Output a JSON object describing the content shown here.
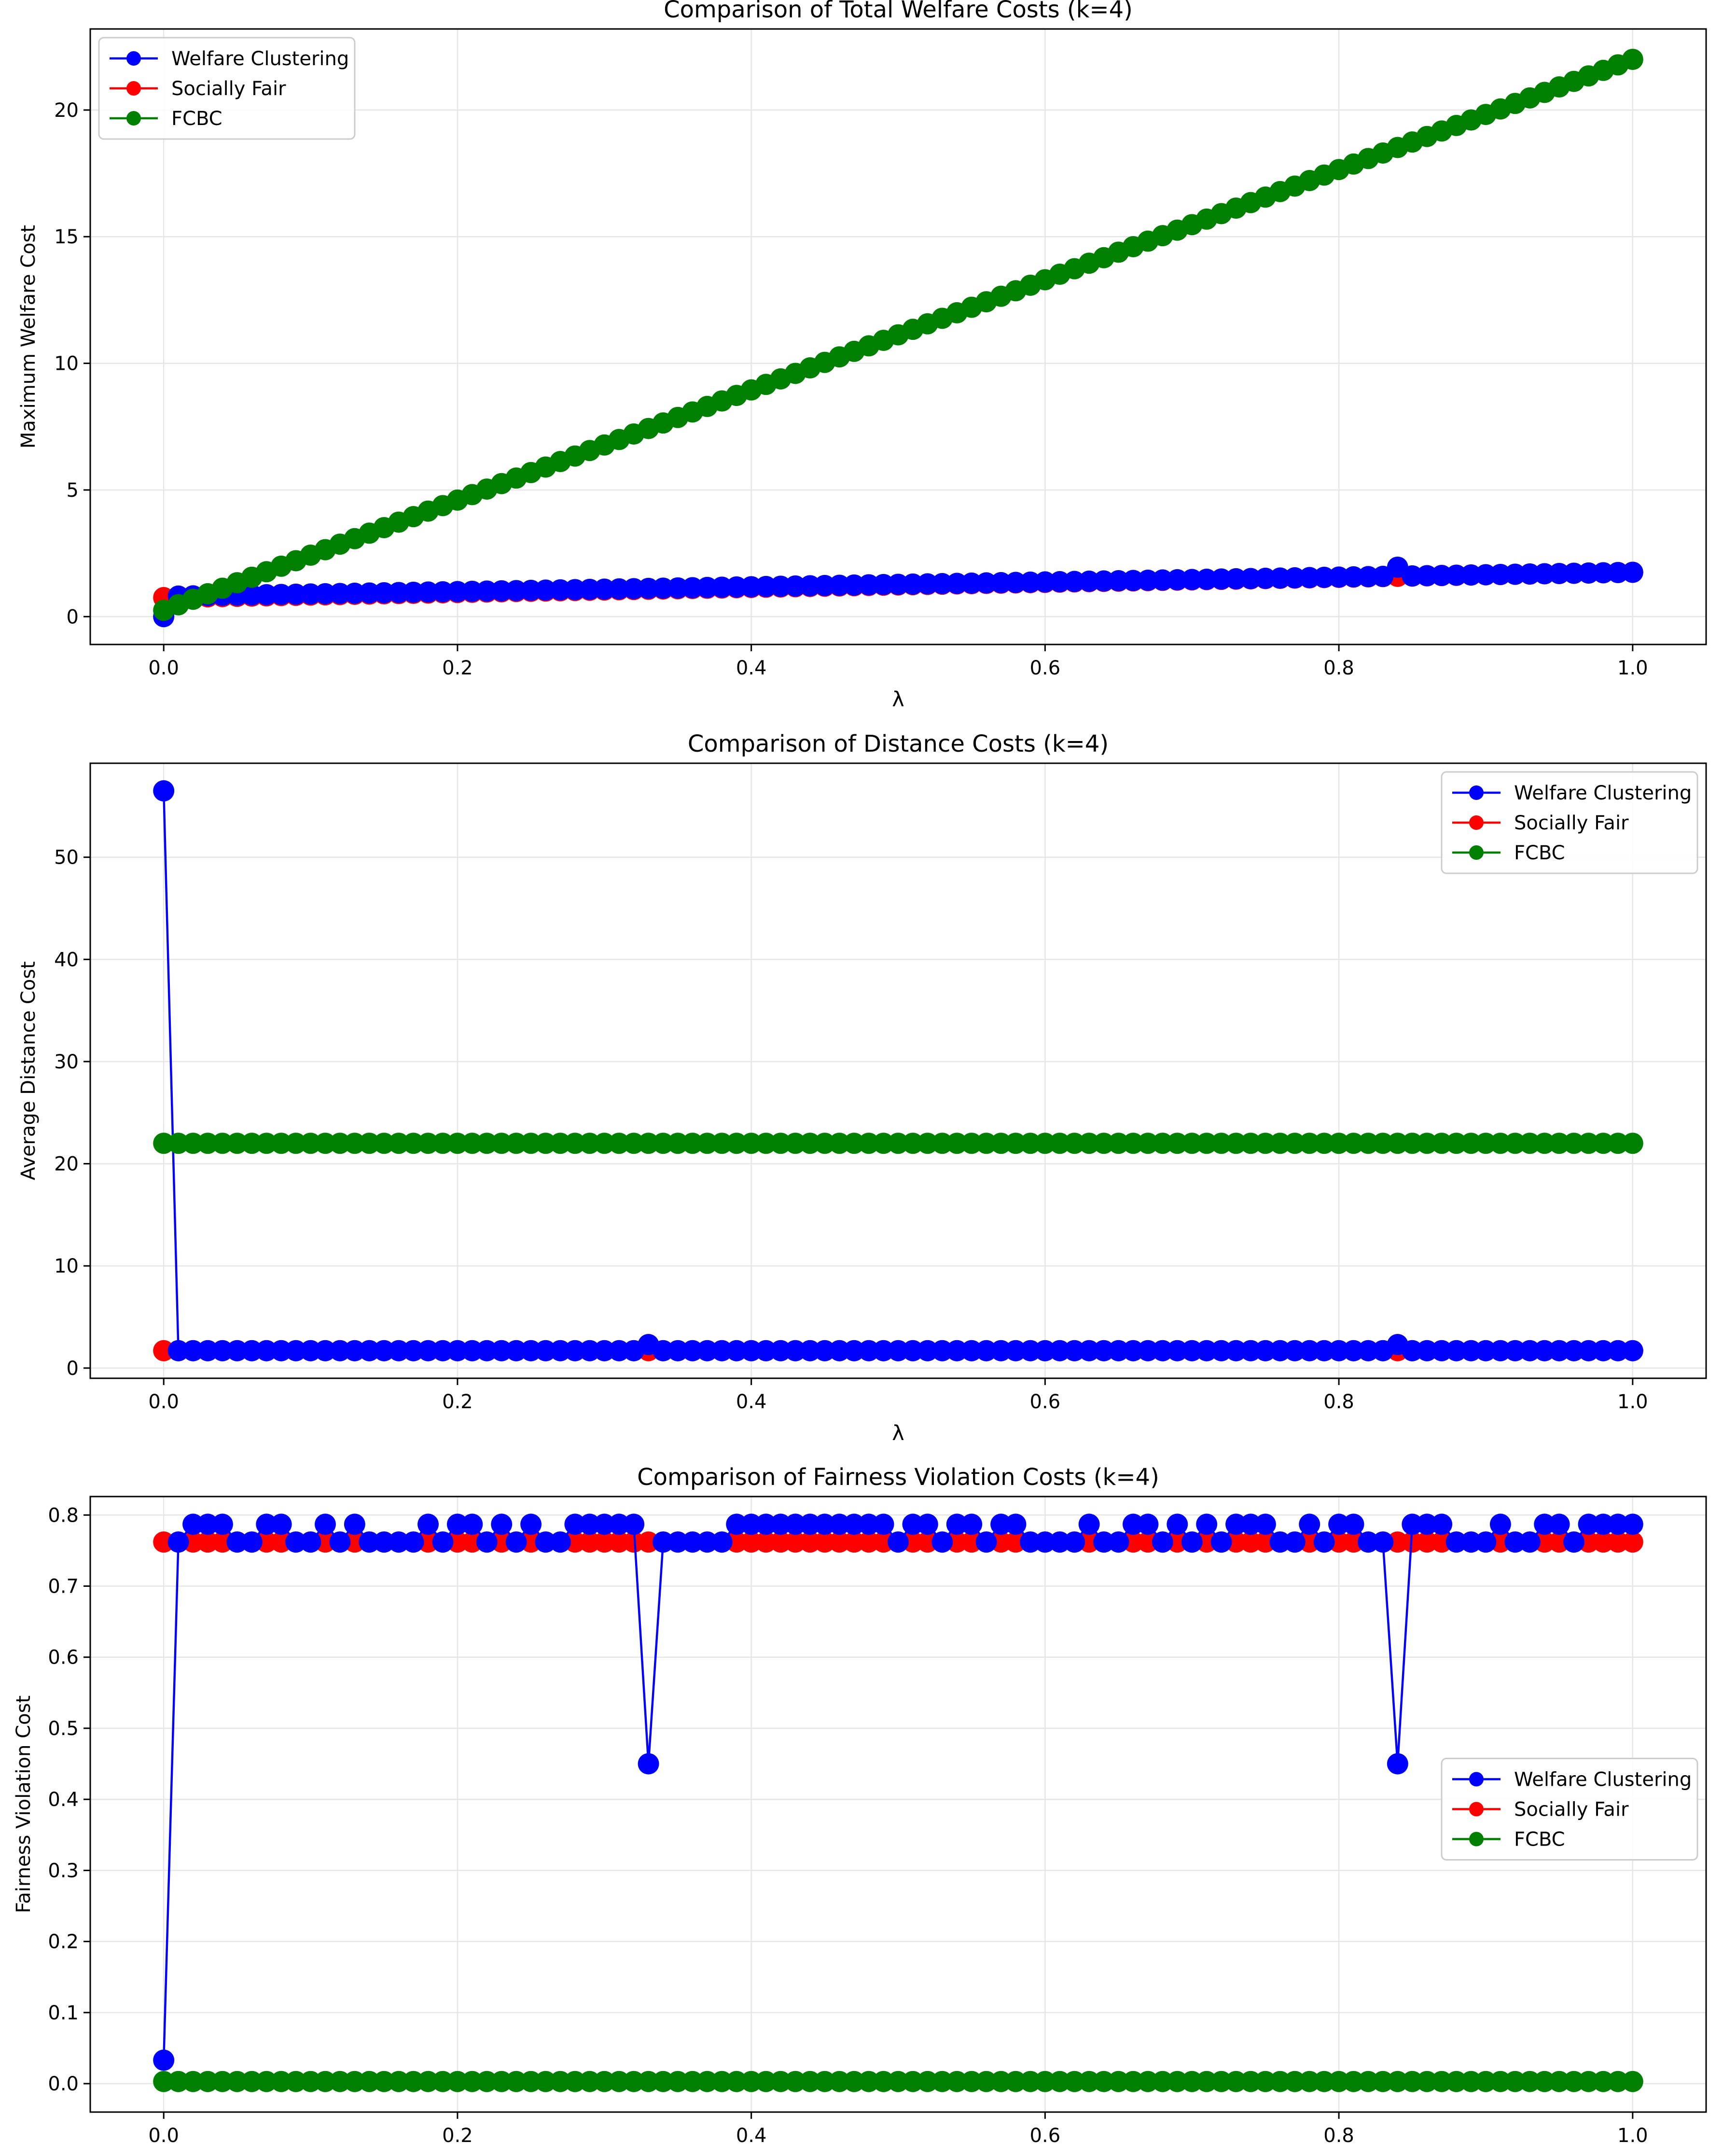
{
  "colors": {
    "welfare": "#0000ff",
    "social": "#ff0000",
    "fcbc": "#008000",
    "grid": "#e6e6e6",
    "axis": "#000000"
  },
  "chart_data": [
    {
      "type": "line",
      "title": "Comparison of Total Welfare Costs (k=4)",
      "xlabel": "λ",
      "ylabel": "Maximum Welfare Cost",
      "xlim": [
        -0.05,
        1.05
      ],
      "ylim": [
        -1.1,
        23.2
      ],
      "xticks": [
        0.0,
        0.2,
        0.4,
        0.6,
        0.8,
        1.0
      ],
      "xtick_labels": [
        "0.0",
        "0.2",
        "0.4",
        "0.6",
        "0.8",
        "1.0"
      ],
      "yticks": [
        0,
        5,
        10,
        15,
        20
      ],
      "ytick_labels": [
        "0",
        "5",
        "10",
        "15",
        "20"
      ],
      "grid": true,
      "legend_position": "upper-left",
      "x": {
        "start": 0,
        "end": 1,
        "count": 101
      },
      "series": [
        {
          "name": "Socially Fair",
          "color_key": "social",
          "formula": "linear",
          "start": 0.75,
          "end": 1.75,
          "exceptions": [
            [
              0,
              0.75
            ]
          ]
        },
        {
          "name": "Welfare Clustering",
          "color_key": "welfare",
          "formula": "linear",
          "start": 0.8,
          "end": 1.75,
          "exceptions": [
            [
              0,
              0.0
            ],
            [
              84,
              1.95
            ]
          ]
        },
        {
          "name": "FCBC",
          "color_key": "fcbc",
          "formula": "linear",
          "start": 0.25,
          "end": 22.0,
          "exceptions": []
        }
      ]
    },
    {
      "type": "line",
      "title": "Comparison of Distance Costs (k=4)",
      "xlabel": "λ",
      "ylabel": "Average Distance Cost",
      "xlim": [
        -0.05,
        1.05
      ],
      "ylim": [
        -1.0,
        59.2
      ],
      "xticks": [
        0.0,
        0.2,
        0.4,
        0.6,
        0.8,
        1.0
      ],
      "xtick_labels": [
        "0.0",
        "0.2",
        "0.4",
        "0.6",
        "0.8",
        "1.0"
      ],
      "yticks": [
        0,
        10,
        20,
        30,
        40,
        50
      ],
      "ytick_labels": [
        "0",
        "10",
        "20",
        "30",
        "40",
        "50"
      ],
      "grid": true,
      "legend_position": "upper-right",
      "x": {
        "start": 0,
        "end": 1,
        "count": 101
      },
      "series": [
        {
          "name": "Socially Fair",
          "color_key": "social",
          "formula": "constant",
          "start": 1.7,
          "end": 1.7,
          "exceptions": []
        },
        {
          "name": "Welfare Clustering",
          "color_key": "welfare",
          "formula": "constant",
          "start": 1.7,
          "end": 1.7,
          "exceptions": [
            [
              0,
              56.5
            ],
            [
              33,
              2.3
            ],
            [
              84,
              2.3
            ]
          ]
        },
        {
          "name": "FCBC",
          "color_key": "fcbc",
          "formula": "constant",
          "start": 22.0,
          "end": 22.0,
          "exceptions": []
        }
      ]
    },
    {
      "type": "line",
      "title": "Comparison of Fairness Violation Costs (k=4)",
      "xlabel": "λ",
      "ylabel": "Fairness Violation Cost",
      "xlim": [
        -0.05,
        1.05
      ],
      "ylim": [
        -0.04,
        0.826
      ],
      "xticks": [
        0.0,
        0.2,
        0.4,
        0.6,
        0.8,
        1.0
      ],
      "xtick_labels": [
        "0.0",
        "0.2",
        "0.4",
        "0.6",
        "0.8",
        "1.0"
      ],
      "yticks": [
        0.0,
        0.1,
        0.2,
        0.3,
        0.4,
        0.5,
        0.6,
        0.7,
        0.8
      ],
      "ytick_labels": [
        "0.0",
        "0.1",
        "0.2",
        "0.3",
        "0.4",
        "0.5",
        "0.6",
        "0.7",
        "0.8"
      ],
      "grid": true,
      "legend_position": "center-right",
      "x": {
        "start": 0,
        "end": 1,
        "count": 101
      },
      "series": [
        {
          "name": "Socially Fair",
          "color_key": "social",
          "formula": "constant",
          "start": 0.762,
          "end": 0.762,
          "exceptions": []
        },
        {
          "name": "Welfare Clustering",
          "color_key": "welfare",
          "formula": "binary",
          "low": 0.762,
          "high": 0.787,
          "high_indices": [
            2,
            3,
            4,
            7,
            8,
            11,
            13,
            18,
            20,
            21,
            23,
            25,
            28,
            29,
            30,
            31,
            32,
            39,
            40,
            41,
            42,
            43,
            44,
            45,
            46,
            47,
            48,
            49,
            51,
            52,
            54,
            55,
            57,
            58,
            63,
            66,
            67,
            69,
            71,
            73,
            74,
            75,
            78,
            80,
            81,
            85,
            86,
            87,
            91,
            94,
            95,
            97,
            98,
            99,
            100
          ],
          "exceptions": [
            [
              0,
              0.033
            ],
            [
              33,
              0.45
            ],
            [
              84,
              0.45
            ]
          ]
        },
        {
          "name": "FCBC",
          "color_key": "fcbc",
          "formula": "constant",
          "start": 0.003,
          "end": 0.003,
          "exceptions": []
        }
      ]
    }
  ]
}
